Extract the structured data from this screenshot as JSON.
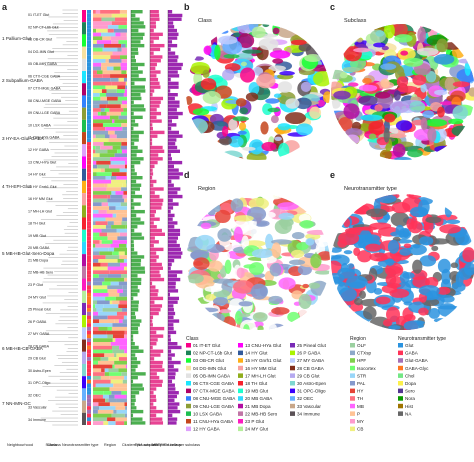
{
  "panels": {
    "a": "a",
    "b": "b",
    "c": "c",
    "d": "d",
    "e": "e"
  },
  "panel_titles": {
    "b": "Class",
    "c": "Subclass",
    "d": "Region",
    "e": "Neurotransmitter type"
  },
  "neighbourhoods": [
    "1 Pallium-Glut",
    "2 Subpallium-GABA",
    "3 HY-EA-Glut-GABA",
    "4 TH-EPI-Glut",
    "5 MB-HB-Glut-Sero-Dopa",
    "6 MB-HB-CB-GABA",
    "7 NN-IMN-GC"
  ],
  "columns": [
    "Neighbourhood",
    "Class",
    "Subclass Neurotransmitter type",
    "Region",
    "Clusters per subclass",
    "RNA-seq cells per subclass",
    "MERFISH cells per subclass"
  ],
  "class_legend": {
    "title": "Class",
    "items": [
      {
        "label": "01 IT-ET Glut",
        "color": "#fa0087"
      },
      {
        "label": "02 NP-CT-L6b Glut",
        "color": "#1c8356"
      },
      {
        "label": "03 OB-CR Glut",
        "color": "#16ff32"
      },
      {
        "label": "04 DG-IMN Glut",
        "color": "#f7e1a0"
      },
      {
        "label": "05 OB-IMN GABA",
        "color": "#e2e2e2"
      },
      {
        "label": "06 CTX-CGE GABA",
        "color": "#1ce6ff"
      },
      {
        "label": "07 CTX-MGE GABA",
        "color": "#b00068"
      },
      {
        "label": "08 CNU-MGE GABA",
        "color": "#3283fe"
      },
      {
        "label": "09 CNU-LGE GABA",
        "color": "#8d9e36"
      },
      {
        "label": "10 LSX GABA",
        "color": "#1cbe4f"
      },
      {
        "label": "11 CNU-HYa GABA",
        "color": "#c4451c"
      },
      {
        "label": "12 HY GABA",
        "color": "#dea0fd"
      },
      {
        "label": "13 CNU-HYa Glut",
        "color": "#fe00fa"
      },
      {
        "label": "14 HY Glut",
        "color": "#325a9b"
      },
      {
        "label": "15 HY Gnrh1 Glut",
        "color": "#feaf16"
      },
      {
        "label": "16 HY MM Glut",
        "color": "#f8a19f"
      },
      {
        "label": "17 MH-LH Glut",
        "color": "#90ad1c"
      },
      {
        "label": "18 TH Glut",
        "color": "#f6222e"
      },
      {
        "label": "19 MB Glut",
        "color": "#1cffce"
      },
      {
        "label": "20 MB GABA",
        "color": "#2ed9ff"
      },
      {
        "label": "21 MB Dopa",
        "color": "#b10da1"
      },
      {
        "label": "22 MB-HB Sero",
        "color": "#c075a6"
      },
      {
        "label": "23 P Glut",
        "color": "#fc1cbf"
      },
      {
        "label": "24 MY Glut",
        "color": "#b5ef9b"
      },
      {
        "label": "25 Pineal Glut",
        "color": "#782ab6"
      },
      {
        "label": "26 P GABA",
        "color": "#aaf400"
      },
      {
        "label": "27 MY GABA",
        "color": "#bdcdff"
      },
      {
        "label": "28 CB GABA",
        "color": "#822e1c"
      },
      {
        "label": "29 CB Glut",
        "color": "#b5a9f0"
      },
      {
        "label": "30 Astro-Epen",
        "color": "#7ed7d1"
      },
      {
        "label": "31 OPC-Oligo",
        "color": "#3b00fb"
      },
      {
        "label": "32 OEC",
        "color": "#66b0ff"
      },
      {
        "label": "33 Vascular",
        "color": "#c8a78a"
      },
      {
        "label": "34 Immune",
        "color": "#5a5156"
      }
    ]
  },
  "region_legend": {
    "title": "Region",
    "items": [
      {
        "label": "OLF",
        "color": "#9bd0a0"
      },
      {
        "label": "CTXsp",
        "color": "#8da8c8"
      },
      {
        "label": "HPF",
        "color": "#7ed04b"
      },
      {
        "label": "Isocortex",
        "color": "#70ff71"
      },
      {
        "label": "STR",
        "color": "#98d6f9"
      },
      {
        "label": "PAL",
        "color": "#8599cc"
      },
      {
        "label": "HY",
        "color": "#e64438"
      },
      {
        "label": "TH",
        "color": "#ff7080"
      },
      {
        "label": "MB",
        "color": "#ff64ff"
      },
      {
        "label": "P",
        "color": "#ffc395"
      },
      {
        "label": "MY",
        "color": "#ff9bcd"
      },
      {
        "label": "CB",
        "color": "#f0f080"
      }
    ]
  },
  "nt_legend": {
    "title": "Neurotransmitter type",
    "items": [
      {
        "label": "Glut",
        "color": "#2b93df"
      },
      {
        "label": "GABA",
        "color": "#ff3358"
      },
      {
        "label": "Glut-GABA",
        "color": "#a46fb5"
      },
      {
        "label": "GABA-Glyc",
        "color": "#ff7621"
      },
      {
        "label": "Chol",
        "color": "#73e785"
      },
      {
        "label": "Dopa",
        "color": "#fcf04b"
      },
      {
        "label": "Sero",
        "color": "#533691"
      },
      {
        "label": "Nora",
        "color": "#0a9a00"
      },
      {
        "label": "Hist",
        "color": "#9e7400"
      },
      {
        "label": "NA",
        "color": "#666666"
      }
    ]
  }
}
